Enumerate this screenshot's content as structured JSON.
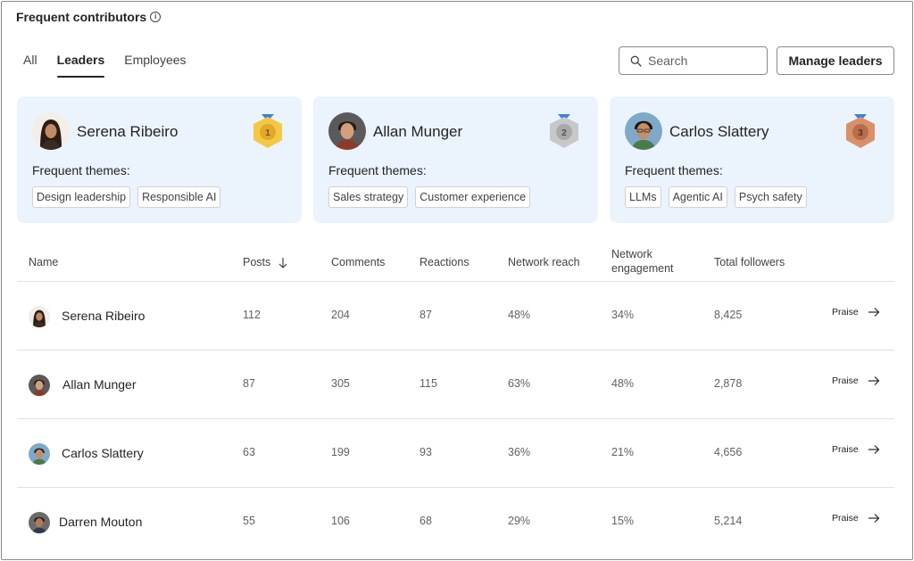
{
  "header": {
    "title": "Frequent contributors",
    "info_icon": "info-icon"
  },
  "tabs": [
    {
      "label": "All",
      "active": false
    },
    {
      "label": "Leaders",
      "active": true
    },
    {
      "label": "Employees",
      "active": false
    }
  ],
  "search": {
    "placeholder": "Search",
    "value": "",
    "icon": "search-icon"
  },
  "toolbar": {
    "manage_label": "Manage leaders"
  },
  "leaders": [
    {
      "name": "Serena Ribeiro",
      "rank": "1",
      "medal": "gold-medal-icon",
      "themes_label": "Frequent themes:",
      "themes": [
        "Design leadership",
        "Responsible AI"
      ]
    },
    {
      "name": "Allan Munger",
      "rank": "2",
      "medal": "silver-medal-icon",
      "themes_label": "Frequent themes:",
      "themes": [
        "Sales strategy",
        "Customer experience"
      ]
    },
    {
      "name": "Carlos Slattery",
      "rank": "3",
      "medal": "bronze-medal-icon",
      "themes_label": "Frequent themes:",
      "themes": [
        "LLMs",
        "Agentic AI",
        "Psych safety"
      ]
    }
  ],
  "table": {
    "columns": {
      "name": "Name",
      "posts": "Posts",
      "comments": "Comments",
      "reactions": "Reactions",
      "reach": "Network reach",
      "engagement_1": "Network",
      "engagement_2": "engagement",
      "followers": "Total followers"
    },
    "sort_icon": "arrow-down-icon",
    "rows": [
      {
        "name": "Serena Ribeiro",
        "posts": "112",
        "comments": "204",
        "reactions": "87",
        "reach": "48%",
        "engagement": "34%",
        "followers": "8,425",
        "action": "Praise"
      },
      {
        "name": "Allan Munger",
        "posts": "87",
        "comments": "305",
        "reactions": "115",
        "reach": "63%",
        "engagement": "48%",
        "followers": "2,878",
        "action": "Praise"
      },
      {
        "name": "Carlos Slattery",
        "posts": "63",
        "comments": "199",
        "reactions": "93",
        "reach": "36%",
        "engagement": "21%",
        "followers": "4,656",
        "action": "Praise"
      },
      {
        "name": "Darren Mouton",
        "posts": "55",
        "comments": "106",
        "reactions": "68",
        "reach": "29%",
        "engagement": "15%",
        "followers": "5,214",
        "action": "Praise"
      }
    ]
  },
  "colors": {
    "card_bg": "#ebf3fc",
    "gold": "#f5c842",
    "silver": "#c8c8c8",
    "bronze": "#d9906a",
    "ribbon": "#3b82d6"
  }
}
